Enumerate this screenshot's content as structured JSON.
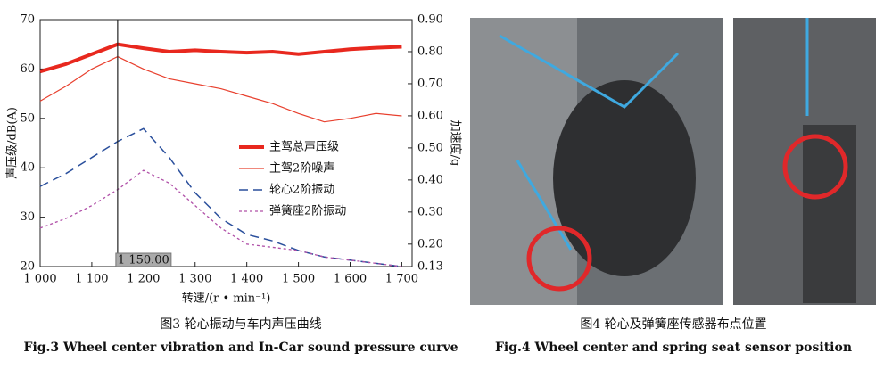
{
  "chart_data": {
    "type": "line",
    "x_label": "转速/(r • min⁻¹)",
    "y_label": "声压级/dB(A)",
    "y2_label": "加速度/g",
    "x": [
      1000,
      1050,
      1100,
      1150,
      1200,
      1250,
      1300,
      1350,
      1400,
      1450,
      1500,
      1550,
      1600,
      1650,
      1700
    ],
    "xlim": [
      1000,
      1720
    ],
    "xticks": [
      {
        "value": 1000,
        "label": "1 000"
      },
      {
        "value": 1100,
        "label": "1 100"
      },
      {
        "value": 1200,
        "label": "1 200"
      },
      {
        "value": 1300,
        "label": "1 300"
      },
      {
        "value": 1400,
        "label": "1 400"
      },
      {
        "value": 1500,
        "label": "1 500"
      },
      {
        "value": 1600,
        "label": "1 600"
      },
      {
        "value": 1700,
        "label": "1 700"
      }
    ],
    "ylim": [
      20,
      70
    ],
    "yticks": [
      20,
      30,
      40,
      50,
      60,
      70
    ],
    "y2lim": [
      0.13,
      0.9
    ],
    "y2ticks": [
      0.13,
      {
        "value": 0.2,
        "label": "0.20"
      },
      {
        "value": 0.3,
        "label": "0.30"
      },
      {
        "value": 0.4,
        "label": "0.40"
      },
      {
        "value": 0.5,
        "label": "0.50"
      },
      {
        "value": 0.6,
        "label": "0.60"
      },
      {
        "value": 0.7,
        "label": "0.70"
      },
      {
        "value": 0.8,
        "label": "0.80"
      },
      {
        "value": 0.9,
        "label": "0.90"
      }
    ],
    "marker": {
      "value": 1150,
      "label": "1 150.00"
    },
    "series": [
      {
        "name": "主驾总声压级",
        "color": "#e8281e",
        "width": 4,
        "dash": "solid",
        "values": [
          59.5,
          61,
          63,
          65,
          64.2,
          63.5,
          63.8,
          63.5,
          63.3,
          63.5,
          63,
          63.5,
          64,
          64.3,
          64.5
        ]
      },
      {
        "name": "主驾2阶噪声",
        "color": "#e8402e",
        "width": 1.2,
        "dash": "solid",
        "values": [
          53.5,
          56.5,
          60,
          62.5,
          60,
          58,
          57,
          56,
          54.5,
          53,
          51,
          49.3,
          50,
          51,
          50.5
        ]
      },
      {
        "name": "轮心2阶振动",
        "color": "#2a4f9c",
        "width": 1.5,
        "dash": "dashed",
        "axis": "y2",
        "values": [
          0.38,
          0.42,
          0.47,
          0.52,
          0.56,
          0.47,
          0.36,
          0.28,
          0.23,
          0.21,
          0.18,
          0.16,
          0.15,
          0.14,
          0.13
        ]
      },
      {
        "name": "弹簧座2阶振动",
        "color": "#b050a8",
        "width": 1.3,
        "dash": "dotted",
        "axis": "y2",
        "values": [
          0.25,
          0.28,
          0.32,
          0.37,
          0.43,
          0.39,
          0.32,
          0.25,
          0.2,
          0.19,
          0.18,
          0.16,
          0.15,
          0.14,
          0.13
        ]
      }
    ]
  },
  "captions": {
    "fig3_cn": "图3  轮心振动与车内声压曲线",
    "fig3_en": "Fig.3  Wheel center vibration and In-Car sound pressure curve",
    "fig4_cn": "图4  轮心及弹簧座传感器布点位置",
    "fig4_en": "Fig.4  Wheel center and spring seat sensor position"
  }
}
